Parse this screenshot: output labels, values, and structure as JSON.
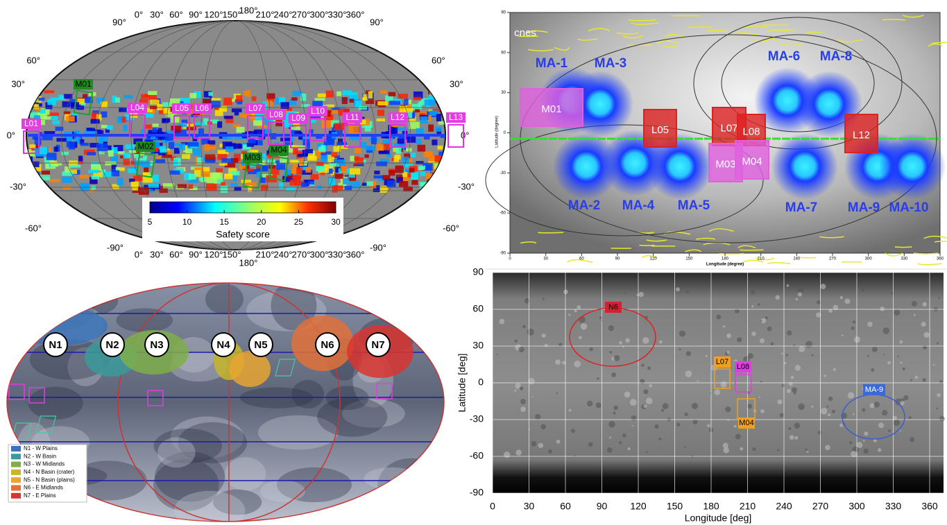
{
  "panel_a": {
    "lon_labels": [
      "0°",
      "30°",
      "60°",
      "90°",
      "120°",
      "150°",
      "180°",
      "210°",
      "240°",
      "270°",
      "300°",
      "330°",
      "360°"
    ],
    "pole_labels": [
      "90°",
      "-90°"
    ],
    "lat_labels": [
      "60°",
      "30°",
      "0°",
      "-30°",
      "-60°"
    ],
    "sites": [
      "L01",
      "L04",
      "L05",
      "L06",
      "L07",
      "L08",
      "L09",
      "L10",
      "L11",
      "L12",
      "L13",
      "M01",
      "M02",
      "M03",
      "M04"
    ],
    "colorbar": {
      "ticks": [
        5,
        10,
        15,
        20,
        25,
        30
      ],
      "label": "Safety score"
    }
  },
  "panel_b": {
    "logo": "cnes",
    "regions": [
      "MA-1",
      "MA-3",
      "MA-6",
      "MA-8",
      "MA-2",
      "MA-4",
      "MA-5",
      "MA-7",
      "MA-9",
      "MA-10"
    ],
    "sites": [
      "M01",
      "L05",
      "L07",
      "L08",
      "M03",
      "M04",
      "L12"
    ],
    "lat_ticks": [
      90,
      60,
      30,
      0,
      -30,
      -60,
      -90
    ],
    "lon_ticks": [
      0,
      30,
      60,
      90,
      120,
      150,
      180,
      210,
      240,
      270,
      300,
      330,
      360
    ],
    "y_label": "Latitude (degree)",
    "x_label": "Longitude (degree)"
  },
  "panel_c": {
    "regions": [
      "N1",
      "N2",
      "N3",
      "N4",
      "N5",
      "N6",
      "N7"
    ],
    "legend": [
      {
        "label": "N1 - W Plains",
        "color": "#3b73b9"
      },
      {
        "label": "N2 - W Basin",
        "color": "#3a9a9a"
      },
      {
        "label": "N3 - W Midlands",
        "color": "#7fae4a"
      },
      {
        "label": "N4 - N Basin (crater)",
        "color": "#c7b52c"
      },
      {
        "label": "N5 - N Basin (plains)",
        "color": "#e8a531"
      },
      {
        "label": "N6 - E Midlands",
        "color": "#e2703a"
      },
      {
        "label": "N7 - E Plains",
        "color": "#d9352f"
      }
    ]
  },
  "panel_d": {
    "lat_ticks": [
      90,
      60,
      30,
      0,
      -30,
      -60,
      -90
    ],
    "lon_ticks": [
      0,
      30,
      60,
      90,
      120,
      150,
      180,
      210,
      240,
      270,
      300,
      330,
      360
    ],
    "y_label": "Latitude [deg]",
    "x_label": "Longitude [deg]",
    "sites": [
      "N6",
      "L07",
      "L08",
      "M04",
      "MA-9"
    ]
  }
}
